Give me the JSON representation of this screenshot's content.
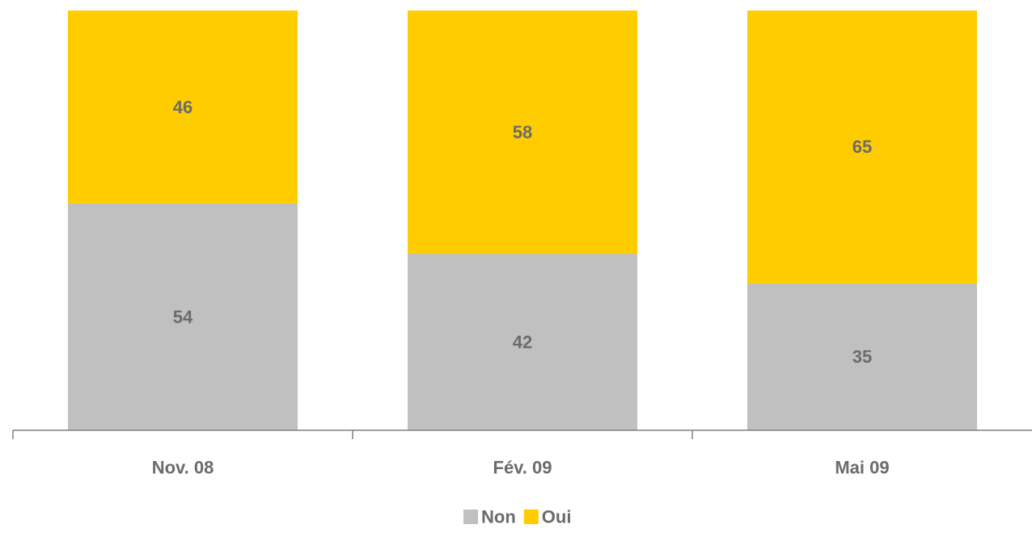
{
  "chart_data": {
    "type": "bar",
    "stacked": true,
    "categories": [
      "Nov. 08",
      "Fév. 09",
      "Mai 09"
    ],
    "series": [
      {
        "name": "Non",
        "values": [
          54,
          42,
          35
        ],
        "color": "#c0c0c0"
      },
      {
        "name": "Oui",
        "values": [
          46,
          58,
          65
        ],
        "color": "#ffcc00"
      }
    ],
    "ylim": [
      0,
      100
    ],
    "grid": false,
    "legend": "bottom-center",
    "axis_color": "#808080",
    "label_color": "#6b6b6b"
  }
}
